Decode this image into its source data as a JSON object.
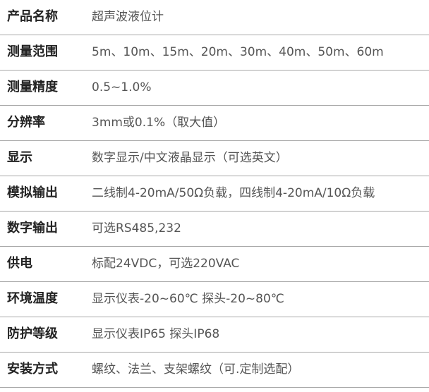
{
  "table": {
    "rows": [
      [
        "产品名称",
        "超声波液位计"
      ],
      [
        "测量范围",
        "5m、10m、15m、20m、30m、40m、50m、60m"
      ],
      [
        "测量精度",
        "0.5~1.0%"
      ],
      [
        "分辨率",
        "3mm或0.1%（取大值）"
      ],
      [
        "显示",
        "数字显示/中文液晶显示（可选英文）"
      ],
      [
        "模拟输出",
        "二线制4-20mA/50Ω负载，四线制4-20mA/10Ω负载"
      ],
      [
        "数字输出",
        "可选RS485,232"
      ],
      [
        "供电",
        "标配24VDC，可选220VAC"
      ],
      [
        "环境温度",
        "显示仪表-20~60℃ 探头-20~80℃"
      ],
      [
        "防护等级",
        "显示仪表IP65 探头IP68"
      ],
      [
        "安装方式",
        "螺纹、法兰、支架螺纹（可.定制选配）"
      ]
    ]
  }
}
